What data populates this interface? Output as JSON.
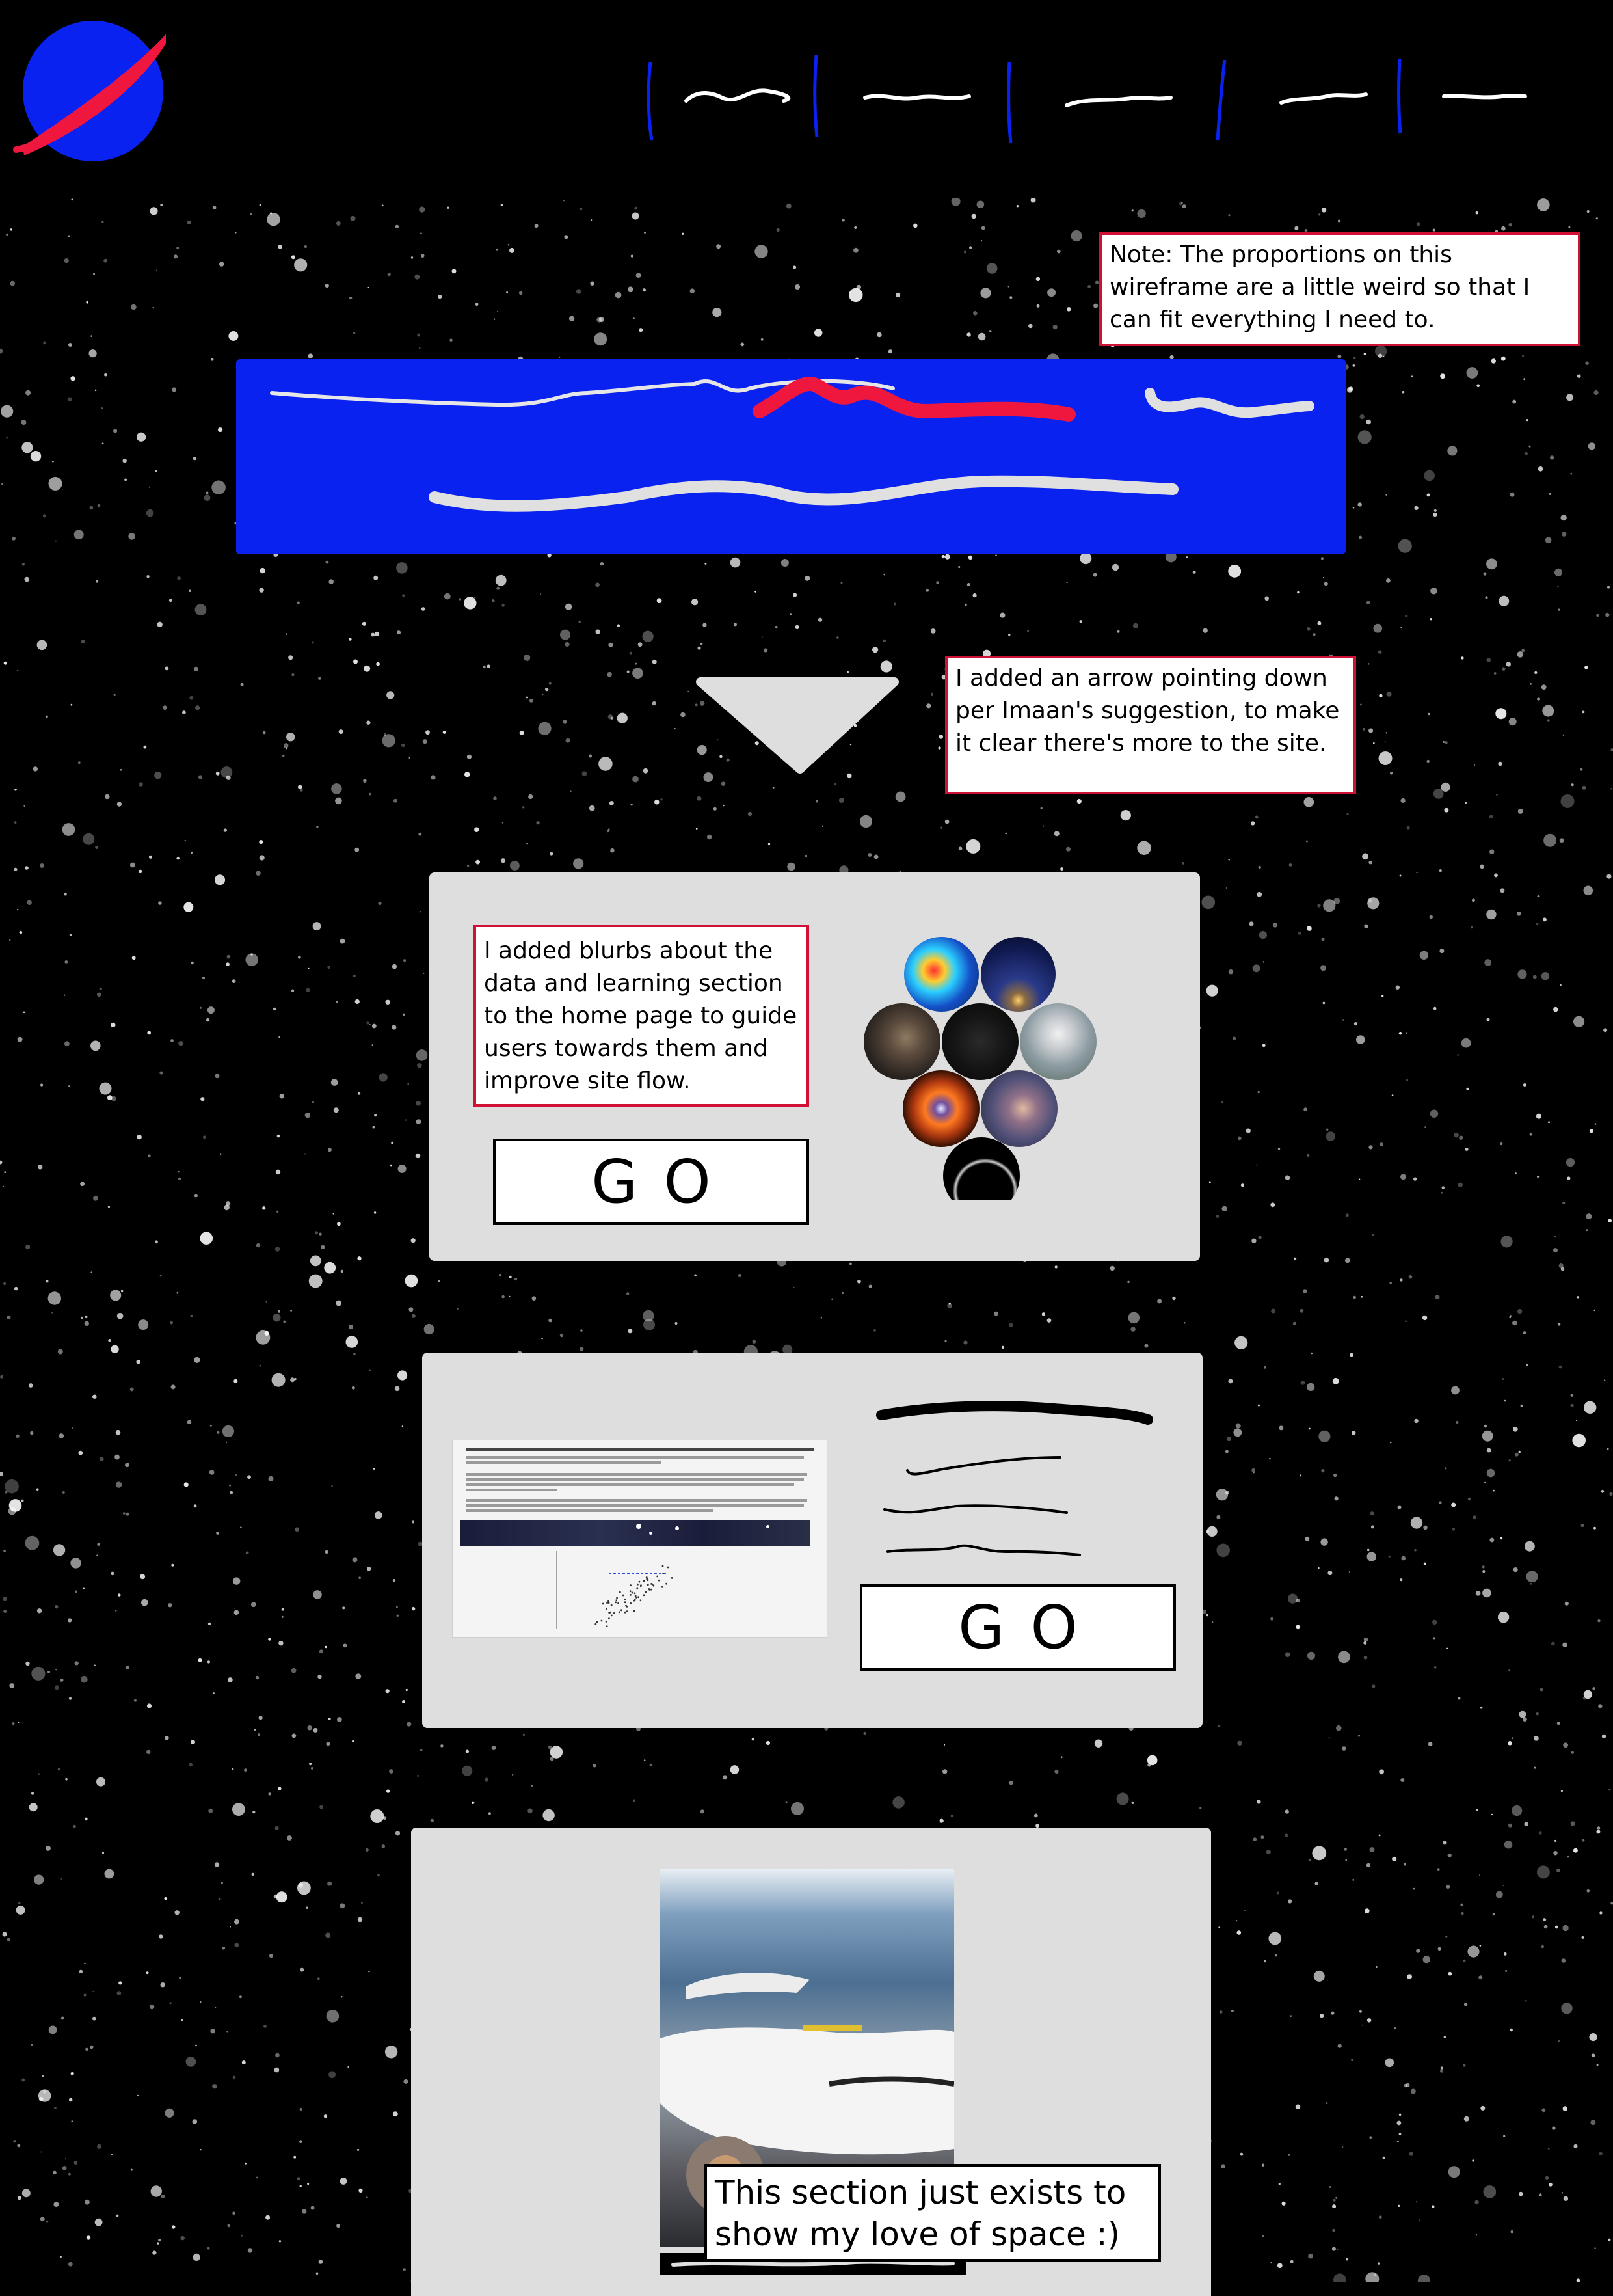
{
  "colors": {
    "page_background": "#000000",
    "accent_blue": "#0a22f0",
    "accent_red": "#f0173f",
    "note_border": "#d01035",
    "panel_background": "#dedede",
    "placeholder_scribble": "#e0e0e0"
  },
  "header": {
    "logo_icon": "planet-orbit-logo-icon",
    "nav_items": [
      {
        "placeholder": "squiggle-text"
      },
      {
        "placeholder": "squiggle-text"
      },
      {
        "placeholder": "squiggle-text"
      },
      {
        "placeholder": "squiggle-text"
      },
      {
        "placeholder": "squiggle-text"
      }
    ]
  },
  "notes": {
    "proportions": "Note: The proportions on this wireframe are a little weird so that I can fit everything I need to.",
    "arrow": "I added an arrow pointing down per Imaan's suggestion, to make it clear there's more to the site.",
    "blurbs": "I added blurbs about the data and learning section to the home page to guide users towards them and improve site flow.",
    "space_love": "This section just exists to show my love of space :)"
  },
  "hero": {
    "scroll_icon": "down-arrow-icon"
  },
  "learning_section": {
    "go_label": "GO",
    "gallery_icons": [
      "galaxy-image",
      "night-sky-image",
      "nebula-image",
      "dark-sky-image",
      "comet-image",
      "supernova-ring-image",
      "milky-way-image",
      "planet-ring-image"
    ]
  },
  "data_section": {
    "go_label": "GO"
  }
}
